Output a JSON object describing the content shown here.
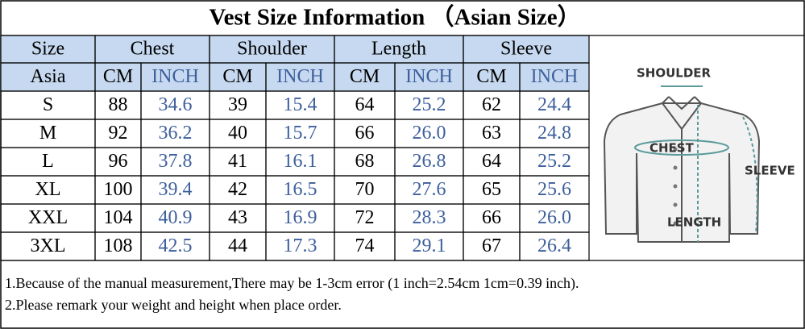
{
  "title": "Vest Size Information （Asian Size）",
  "table": {
    "header": [
      "Size",
      "Chest",
      "Shoulder",
      "Length",
      "Sleeve"
    ],
    "subheader": [
      "Asia",
      "CM",
      "INCH",
      "CM",
      "INCH",
      "CM",
      "INCH",
      "CM",
      "INCH"
    ],
    "rows": [
      [
        "S",
        "88",
        "34.6",
        "39",
        "15.4",
        "64",
        "25.2",
        "62",
        "24.4"
      ],
      [
        "M",
        "92",
        "36.2",
        "40",
        "15.7",
        "66",
        "26.0",
        "63",
        "24.8"
      ],
      [
        "L",
        "96",
        "37.8",
        "41",
        "16.1",
        "68",
        "26.8",
        "64",
        "25.2"
      ],
      [
        "XL",
        "100",
        "39.4",
        "42",
        "16.5",
        "70",
        "27.6",
        "65",
        "25.6"
      ],
      [
        "XXL",
        "104",
        "40.9",
        "43",
        "16.9",
        "72",
        "28.3",
        "66",
        "26.0"
      ],
      [
        "3XL",
        "108",
        "42.5",
        "44",
        "17.3",
        "74",
        "29.1",
        "67",
        "26.4"
      ]
    ]
  },
  "diagram": {
    "labels": [
      "SHOULDER",
      "CHEST",
      "SLEEVE",
      "LENGTH"
    ]
  },
  "notes": [
    "1.Because of the manual measurement,There may be 1-3cm error (1 inch=2.54cm 1cm=0.39 inch).",
    "2.Please remark your weight and height when place order."
  ]
}
